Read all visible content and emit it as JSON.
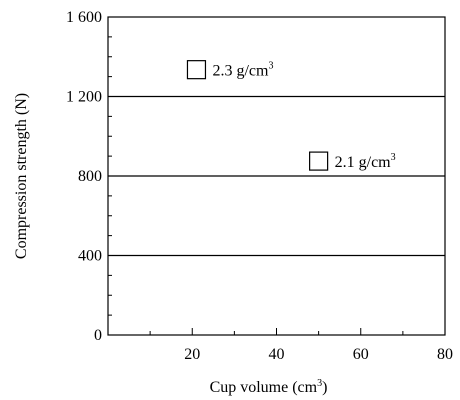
{
  "chart_data": {
    "type": "scatter",
    "xlabel_main": "Cup volume (cm",
    "xlabel_sup": "3",
    "xlabel_end": ")",
    "ylabel": "Compression strength (N)",
    "xlim": [
      0,
      80
    ],
    "ylim": [
      0,
      1600
    ],
    "x_ticks": [
      20,
      40,
      60,
      80
    ],
    "x_tick_labels": [
      "20",
      "40",
      "60",
      "80"
    ],
    "x_minor_step": 10,
    "y_ticks": [
      0,
      400,
      800,
      1200,
      1600
    ],
    "y_tick_labels": [
      "0",
      "400",
      "800",
      "1 200",
      "1 600"
    ],
    "y_minor_step": 100,
    "grid": "horizontal",
    "gridlines": [
      400,
      800,
      1200
    ],
    "series": [
      {
        "x": [
          21
        ],
        "y": [
          1335
        ],
        "marker": "open-square",
        "label_main": "2.3 g/cm",
        "label_sup": "3"
      },
      {
        "x": [
          50
        ],
        "y": [
          875
        ],
        "marker": "open-square",
        "label_main": "2.1 g/cm",
        "label_sup": "3"
      }
    ]
  }
}
